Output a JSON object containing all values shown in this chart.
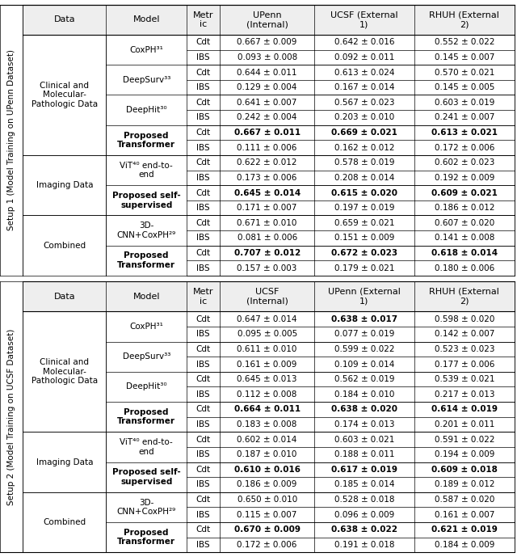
{
  "figsize": [
    6.4,
    6.89
  ],
  "dpi": 100,
  "setup1": {
    "header": [
      "Data",
      "Model",
      "Metr\nic",
      "UPenn\n(Internal)",
      "UCSF (External\n1)",
      "RHUH (External\n2)"
    ],
    "groups": [
      {
        "data_label": "Clinical and\nMolecular-\nPathologic Data",
        "data_span": 4,
        "models": [
          {
            "name": "CoxPH³¹",
            "bold": false,
            "cdt": "0.667 ± 0.009",
            "ibs": "0.093 ± 0.008",
            "cdt_bold": [
              false,
              false,
              false
            ],
            "ibs_bold": [
              false,
              false,
              false
            ]
          },
          {
            "name": "DeepSurv³³",
            "bold": false,
            "cdt": "0.644 ± 0.011",
            "ibs": "0.129 ± 0.004",
            "cdt_bold": [
              false,
              false,
              false
            ],
            "ibs_bold": [
              false,
              false,
              false
            ]
          },
          {
            "name": "DeepHit³⁰",
            "bold": false,
            "cdt": "0.641 ± 0.007",
            "ibs": "0.242 ± 0.004",
            "cdt_bold": [
              false,
              false,
              false
            ],
            "ibs_bold": [
              false,
              false,
              false
            ]
          },
          {
            "name": "Proposed\nTransformer",
            "bold": true,
            "cdt": "0.667 ± 0.011",
            "ibs": "0.111 ± 0.006",
            "cdt_bold": [
              true,
              true,
              true
            ],
            "ibs_bold": [
              false,
              false,
              false
            ]
          }
        ],
        "cdt_vals": [
          [
            "0.667 ± 0.009",
            "0.642 ± 0.016",
            "0.552 ± 0.022"
          ],
          [
            "0.644 ± 0.011",
            "0.613 ± 0.024",
            "0.570 ± 0.021"
          ],
          [
            "0.641 ± 0.007",
            "0.567 ± 0.023",
            "0.603 ± 0.019"
          ],
          [
            "0.667 ± 0.011",
            "0.669 ± 0.021",
            "0.613 ± 0.021"
          ]
        ],
        "ibs_vals": [
          [
            "0.093 ± 0.008",
            "0.092 ± 0.011",
            "0.145 ± 0.007"
          ],
          [
            "0.129 ± 0.004",
            "0.167 ± 0.014",
            "0.145 ± 0.005"
          ],
          [
            "0.242 ± 0.004",
            "0.203 ± 0.010",
            "0.241 ± 0.007"
          ],
          [
            "0.111 ± 0.006",
            "0.162 ± 0.012",
            "0.172 ± 0.006"
          ]
        ],
        "cdt_bold": [
          [
            false,
            false,
            false
          ],
          [
            false,
            false,
            false
          ],
          [
            false,
            false,
            false
          ],
          [
            true,
            true,
            true
          ]
        ],
        "ibs_bold": [
          [
            false,
            false,
            false
          ],
          [
            false,
            false,
            false
          ],
          [
            false,
            false,
            false
          ],
          [
            false,
            false,
            false
          ]
        ]
      },
      {
        "data_label": "Imaging Data",
        "data_span": 2,
        "models": [
          {
            "name": "ViT⁴⁰ end-to-\nend",
            "bold": false
          },
          {
            "name": "Proposed self-\nsupervised",
            "bold": true
          }
        ],
        "cdt_vals": [
          [
            "0.622 ± 0.012",
            "0.578 ± 0.019",
            "0.602 ± 0.023"
          ],
          [
            "0.645 ± 0.014",
            "0.615 ± 0.020",
            "0.609 ± 0.021"
          ]
        ],
        "ibs_vals": [
          [
            "0.173 ± 0.006",
            "0.208 ± 0.014",
            "0.192 ± 0.009"
          ],
          [
            "0.171 ± 0.007",
            "0.197 ± 0.019",
            "0.186 ± 0.012"
          ]
        ],
        "cdt_bold": [
          [
            false,
            false,
            false
          ],
          [
            true,
            true,
            true
          ]
        ],
        "ibs_bold": [
          [
            false,
            false,
            false
          ],
          [
            false,
            false,
            false
          ]
        ]
      },
      {
        "data_label": "Combined",
        "data_span": 2,
        "models": [
          {
            "name": "3D-\nCNN+CoxPH²⁹",
            "bold": false
          },
          {
            "name": "Proposed\nTransformer",
            "bold": true
          }
        ],
        "cdt_vals": [
          [
            "0.671 ± 0.010",
            "0.659 ± 0.021",
            "0.607 ± 0.020"
          ],
          [
            "0.707 ± 0.012",
            "0.672 ± 0.023",
            "0.618 ± 0.014"
          ]
        ],
        "ibs_vals": [
          [
            "0.081 ± 0.006",
            "0.151 ± 0.009",
            "0.141 ± 0.008"
          ],
          [
            "0.157 ± 0.003",
            "0.179 ± 0.021",
            "0.180 ± 0.006"
          ]
        ],
        "cdt_bold": [
          [
            false,
            false,
            false
          ],
          [
            true,
            true,
            true
          ]
        ],
        "ibs_bold": [
          [
            false,
            false,
            false
          ],
          [
            false,
            false,
            false
          ]
        ]
      }
    ]
  },
  "setup2": {
    "header": [
      "Data",
      "Model",
      "Metr\nic",
      "UCSF\n(Internal)",
      "UPenn (External\n1)",
      "RHUH (External\n2)"
    ],
    "groups": [
      {
        "data_label": "Clinical and\nMolecular-\nPathologic Data",
        "data_span": 4,
        "models": [
          {
            "name": "CoxPH³¹",
            "bold": false
          },
          {
            "name": "DeepSurv³³",
            "bold": false
          },
          {
            "name": "DeepHit³⁰",
            "bold": false
          },
          {
            "name": "Proposed\nTransformer",
            "bold": true
          }
        ],
        "cdt_vals": [
          [
            "0.647 ± 0.014",
            "0.638 ± 0.017",
            "0.598 ± 0.020"
          ],
          [
            "0.611 ± 0.010",
            "0.599 ± 0.022",
            "0.523 ± 0.023"
          ],
          [
            "0.645 ± 0.013",
            "0.562 ± 0.019",
            "0.539 ± 0.021"
          ],
          [
            "0.664 ± 0.011",
            "0.638 ± 0.020",
            "0.614 ± 0.019"
          ]
        ],
        "ibs_vals": [
          [
            "0.095 ± 0.005",
            "0.077 ± 0.019",
            "0.142 ± 0.007"
          ],
          [
            "0.161 ± 0.009",
            "0.109 ± 0.014",
            "0.177 ± 0.006"
          ],
          [
            "0.112 ± 0.008",
            "0.184 ± 0.010",
            "0.217 ± 0.013"
          ],
          [
            "0.183 ± 0.008",
            "0.174 ± 0.013",
            "0.201 ± 0.011"
          ]
        ],
        "cdt_bold": [
          [
            false,
            true,
            false
          ],
          [
            false,
            false,
            false
          ],
          [
            false,
            false,
            false
          ],
          [
            true,
            true,
            true
          ]
        ],
        "ibs_bold": [
          [
            false,
            false,
            false
          ],
          [
            false,
            false,
            false
          ],
          [
            false,
            false,
            false
          ],
          [
            false,
            false,
            false
          ]
        ]
      },
      {
        "data_label": "Imaging Data",
        "data_span": 2,
        "models": [
          {
            "name": "ViT⁴⁰ end-to-\nend",
            "bold": false
          },
          {
            "name": "Proposed self-\nsupervised",
            "bold": true
          }
        ],
        "cdt_vals": [
          [
            "0.602 ± 0.014",
            "0.603 ± 0.021",
            "0.591 ± 0.022"
          ],
          [
            "0.610 ± 0.016",
            "0.617 ± 0.019",
            "0.609 ± 0.018"
          ]
        ],
        "ibs_vals": [
          [
            "0.187 ± 0.010",
            "0.188 ± 0.011",
            "0.194 ± 0.009"
          ],
          [
            "0.186 ± 0.009",
            "0.185 ± 0.014",
            "0.189 ± 0.012"
          ]
        ],
        "cdt_bold": [
          [
            false,
            false,
            false
          ],
          [
            true,
            true,
            true
          ]
        ],
        "ibs_bold": [
          [
            false,
            false,
            false
          ],
          [
            false,
            false,
            false
          ]
        ]
      },
      {
        "data_label": "Combined",
        "data_span": 2,
        "models": [
          {
            "name": "3D-\nCNN+CoxPH²⁹",
            "bold": false
          },
          {
            "name": "Proposed\nTransformer",
            "bold": true
          }
        ],
        "cdt_vals": [
          [
            "0.650 ± 0.010",
            "0.528 ± 0.018",
            "0.587 ± 0.020"
          ],
          [
            "0.670 ± 0.009",
            "0.638 ± 0.022",
            "0.621 ± 0.019"
          ]
        ],
        "ibs_vals": [
          [
            "0.115 ± 0.007",
            "0.096 ± 0.009",
            "0.161 ± 0.007"
          ],
          [
            "0.172 ± 0.006",
            "0.191 ± 0.018",
            "0.184 ± 0.009"
          ]
        ],
        "cdt_bold": [
          [
            false,
            false,
            false
          ],
          [
            true,
            true,
            true
          ]
        ],
        "ibs_bold": [
          [
            false,
            false,
            false
          ],
          [
            false,
            false,
            false
          ]
        ]
      }
    ]
  },
  "setup1_label": "Setup 1 (Model Training on UPenn Dataset)",
  "setup2_label": "Setup 2 (Model Training on UCSF Dataset)"
}
